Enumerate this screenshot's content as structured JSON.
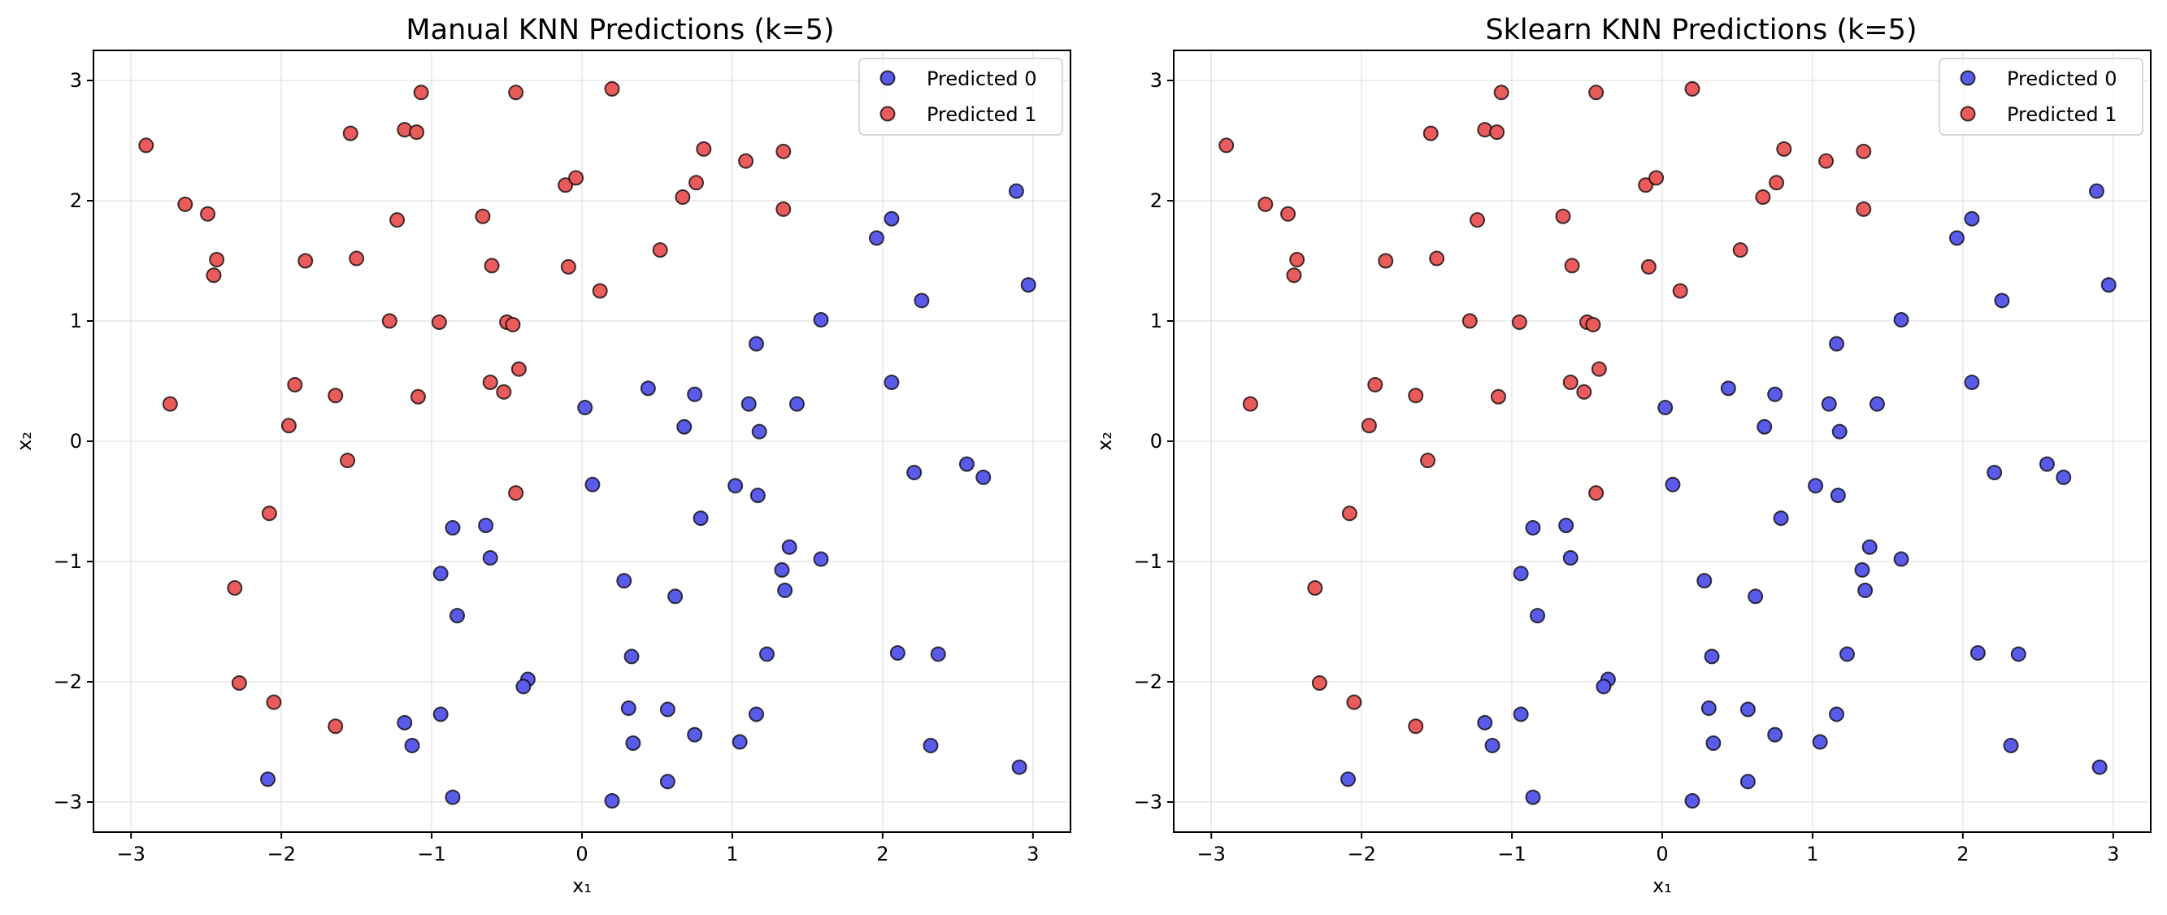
{
  "chart_data": [
    {
      "type": "scatter",
      "title": "Manual KNN Predictions (k=5)",
      "xlabel": "x₁",
      "ylabel": "x₂",
      "xlim": [
        -3.25,
        3.25
      ],
      "ylim": [
        -3.25,
        3.25
      ],
      "xticks": [
        -3,
        -2,
        -1,
        0,
        1,
        2,
        3
      ],
      "yticks": [
        -3,
        -2,
        -1,
        0,
        1,
        2,
        3
      ],
      "xtick_labels": [
        "−3",
        "−2",
        "−1",
        "0",
        "1",
        "2",
        "3"
      ],
      "ytick_labels": [
        "−3",
        "−2",
        "−1",
        "0",
        "1",
        "2",
        "3"
      ],
      "grid": true,
      "legend_position": "top-right",
      "series": [
        {
          "name": "Predicted 0",
          "color": "#5b5bea",
          "points": [
            [
              2.89,
              2.08
            ],
            [
              2.06,
              1.85
            ],
            [
              1.96,
              1.69
            ],
            [
              2.97,
              1.3
            ],
            [
              2.26,
              1.17
            ],
            [
              1.59,
              1.01
            ],
            [
              1.16,
              0.81
            ],
            [
              2.06,
              0.49
            ],
            [
              0.44,
              0.44
            ],
            [
              0.75,
              0.39
            ],
            [
              1.11,
              0.31
            ],
            [
              1.43,
              0.31
            ],
            [
              0.02,
              0.28
            ],
            [
              0.68,
              0.12
            ],
            [
              1.18,
              0.08
            ],
            [
              2.56,
              -0.19
            ],
            [
              2.21,
              -0.26
            ],
            [
              2.67,
              -0.3
            ],
            [
              0.07,
              -0.36
            ],
            [
              1.02,
              -0.37
            ],
            [
              1.17,
              -0.45
            ],
            [
              0.79,
              -0.64
            ],
            [
              -0.64,
              -0.7
            ],
            [
              -0.86,
              -0.72
            ],
            [
              1.38,
              -0.88
            ],
            [
              -0.61,
              -0.97
            ],
            [
              1.59,
              -0.98
            ],
            [
              -0.94,
              -1.1
            ],
            [
              1.33,
              -1.07
            ],
            [
              0.28,
              -1.16
            ],
            [
              1.35,
              -1.24
            ],
            [
              0.62,
              -1.29
            ],
            [
              -0.83,
              -1.45
            ],
            [
              2.1,
              -1.76
            ],
            [
              2.37,
              -1.77
            ],
            [
              1.23,
              -1.77
            ],
            [
              0.33,
              -1.79
            ],
            [
              -0.36,
              -1.98
            ],
            [
              -0.39,
              -2.04
            ],
            [
              0.31,
              -2.22
            ],
            [
              0.57,
              -2.23
            ],
            [
              1.16,
              -2.27
            ],
            [
              -0.94,
              -2.27
            ],
            [
              -1.18,
              -2.34
            ],
            [
              0.75,
              -2.44
            ],
            [
              1.05,
              -2.5
            ],
            [
              0.34,
              -2.51
            ],
            [
              -1.13,
              -2.53
            ],
            [
              2.32,
              -2.53
            ],
            [
              2.91,
              -2.71
            ],
            [
              -2.09,
              -2.81
            ],
            [
              0.57,
              -2.83
            ],
            [
              -0.86,
              -2.96
            ],
            [
              0.2,
              -2.99
            ]
          ]
        },
        {
          "name": "Predicted 1",
          "color": "#ea5b5b",
          "points": [
            [
              -2.9,
              2.46
            ],
            [
              -1.07,
              2.9
            ],
            [
              -0.44,
              2.9
            ],
            [
              0.2,
              2.93
            ],
            [
              -1.54,
              2.56
            ],
            [
              -1.18,
              2.59
            ],
            [
              -1.1,
              2.57
            ],
            [
              0.81,
              2.43
            ],
            [
              1.34,
              2.41
            ],
            [
              1.09,
              2.33
            ],
            [
              -2.64,
              1.97
            ],
            [
              -2.49,
              1.89
            ],
            [
              0.76,
              2.15
            ],
            [
              -0.11,
              2.13
            ],
            [
              -0.04,
              2.19
            ],
            [
              0.67,
              2.03
            ],
            [
              -0.66,
              1.87
            ],
            [
              -1.23,
              1.84
            ],
            [
              1.34,
              1.93
            ],
            [
              0.52,
              1.59
            ],
            [
              -2.43,
              1.51
            ],
            [
              -2.45,
              1.38
            ],
            [
              -1.84,
              1.5
            ],
            [
              -1.5,
              1.52
            ],
            [
              -0.6,
              1.46
            ],
            [
              -0.09,
              1.45
            ],
            [
              0.12,
              1.25
            ],
            [
              -1.28,
              1.0
            ],
            [
              -0.95,
              0.99
            ],
            [
              -0.5,
              0.99
            ],
            [
              -0.46,
              0.97
            ],
            [
              -0.42,
              0.6
            ],
            [
              -1.91,
              0.47
            ],
            [
              -0.61,
              0.49
            ],
            [
              -0.52,
              0.41
            ],
            [
              -1.64,
              0.38
            ],
            [
              -1.09,
              0.37
            ],
            [
              -2.74,
              0.31
            ],
            [
              -1.95,
              0.13
            ],
            [
              -1.56,
              -0.16
            ],
            [
              -0.44,
              -0.43
            ],
            [
              -2.08,
              -0.6
            ],
            [
              -2.31,
              -1.22
            ],
            [
              -2.28,
              -2.01
            ],
            [
              -2.05,
              -2.17
            ],
            [
              -1.64,
              -2.37
            ]
          ]
        }
      ]
    },
    {
      "type": "scatter",
      "title": "Sklearn KNN Predictions (k=5)",
      "xlabel": "x₁",
      "ylabel": "x₂",
      "xlim": [
        -3.25,
        3.25
      ],
      "ylim": [
        -3.25,
        3.25
      ],
      "xticks": [
        -3,
        -2,
        -1,
        0,
        1,
        2,
        3
      ],
      "yticks": [
        -3,
        -2,
        -1,
        0,
        1,
        2,
        3
      ],
      "xtick_labels": [
        "−3",
        "−2",
        "−1",
        "0",
        "1",
        "2",
        "3"
      ],
      "ytick_labels": [
        "−3",
        "−2",
        "−1",
        "0",
        "1",
        "2",
        "3"
      ],
      "grid": true,
      "legend_position": "top-right",
      "series": [
        {
          "name": "Predicted 0",
          "color": "#5b5bea",
          "points": [
            [
              2.89,
              2.08
            ],
            [
              2.06,
              1.85
            ],
            [
              1.96,
              1.69
            ],
            [
              2.97,
              1.3
            ],
            [
              2.26,
              1.17
            ],
            [
              1.59,
              1.01
            ],
            [
              1.16,
              0.81
            ],
            [
              2.06,
              0.49
            ],
            [
              0.44,
              0.44
            ],
            [
              0.75,
              0.39
            ],
            [
              1.11,
              0.31
            ],
            [
              1.43,
              0.31
            ],
            [
              0.02,
              0.28
            ],
            [
              0.68,
              0.12
            ],
            [
              1.18,
              0.08
            ],
            [
              2.56,
              -0.19
            ],
            [
              2.21,
              -0.26
            ],
            [
              2.67,
              -0.3
            ],
            [
              0.07,
              -0.36
            ],
            [
              1.02,
              -0.37
            ],
            [
              1.17,
              -0.45
            ],
            [
              0.79,
              -0.64
            ],
            [
              -0.64,
              -0.7
            ],
            [
              -0.86,
              -0.72
            ],
            [
              1.38,
              -0.88
            ],
            [
              -0.61,
              -0.97
            ],
            [
              1.59,
              -0.98
            ],
            [
              -0.94,
              -1.1
            ],
            [
              1.33,
              -1.07
            ],
            [
              0.28,
              -1.16
            ],
            [
              1.35,
              -1.24
            ],
            [
              0.62,
              -1.29
            ],
            [
              -0.83,
              -1.45
            ],
            [
              2.1,
              -1.76
            ],
            [
              2.37,
              -1.77
            ],
            [
              1.23,
              -1.77
            ],
            [
              0.33,
              -1.79
            ],
            [
              -0.36,
              -1.98
            ],
            [
              -0.39,
              -2.04
            ],
            [
              0.31,
              -2.22
            ],
            [
              0.57,
              -2.23
            ],
            [
              1.16,
              -2.27
            ],
            [
              -0.94,
              -2.27
            ],
            [
              -1.18,
              -2.34
            ],
            [
              0.75,
              -2.44
            ],
            [
              1.05,
              -2.5
            ],
            [
              0.34,
              -2.51
            ],
            [
              -1.13,
              -2.53
            ],
            [
              2.32,
              -2.53
            ],
            [
              2.91,
              -2.71
            ],
            [
              -2.09,
              -2.81
            ],
            [
              0.57,
              -2.83
            ],
            [
              -0.86,
              -2.96
            ],
            [
              0.2,
              -2.99
            ]
          ]
        },
        {
          "name": "Predicted 1",
          "color": "#ea5b5b",
          "points": [
            [
              -2.9,
              2.46
            ],
            [
              -1.07,
              2.9
            ],
            [
              -0.44,
              2.9
            ],
            [
              0.2,
              2.93
            ],
            [
              -1.54,
              2.56
            ],
            [
              -1.18,
              2.59
            ],
            [
              -1.1,
              2.57
            ],
            [
              0.81,
              2.43
            ],
            [
              1.34,
              2.41
            ],
            [
              1.09,
              2.33
            ],
            [
              -2.64,
              1.97
            ],
            [
              -2.49,
              1.89
            ],
            [
              0.76,
              2.15
            ],
            [
              -0.11,
              2.13
            ],
            [
              -0.04,
              2.19
            ],
            [
              0.67,
              2.03
            ],
            [
              -0.66,
              1.87
            ],
            [
              -1.23,
              1.84
            ],
            [
              1.34,
              1.93
            ],
            [
              0.52,
              1.59
            ],
            [
              -2.43,
              1.51
            ],
            [
              -2.45,
              1.38
            ],
            [
              -1.84,
              1.5
            ],
            [
              -1.5,
              1.52
            ],
            [
              -0.6,
              1.46
            ],
            [
              -0.09,
              1.45
            ],
            [
              0.12,
              1.25
            ],
            [
              -1.28,
              1.0
            ],
            [
              -0.95,
              0.99
            ],
            [
              -0.5,
              0.99
            ],
            [
              -0.46,
              0.97
            ],
            [
              -0.42,
              0.6
            ],
            [
              -1.91,
              0.47
            ],
            [
              -0.61,
              0.49
            ],
            [
              -0.52,
              0.41
            ],
            [
              -1.64,
              0.38
            ],
            [
              -1.09,
              0.37
            ],
            [
              -2.74,
              0.31
            ],
            [
              -1.95,
              0.13
            ],
            [
              -1.56,
              -0.16
            ],
            [
              -0.44,
              -0.43
            ],
            [
              -2.08,
              -0.6
            ],
            [
              -2.31,
              -1.22
            ],
            [
              -2.28,
              -2.01
            ],
            [
              -2.05,
              -2.17
            ],
            [
              -1.64,
              -2.37
            ]
          ]
        }
      ]
    }
  ]
}
